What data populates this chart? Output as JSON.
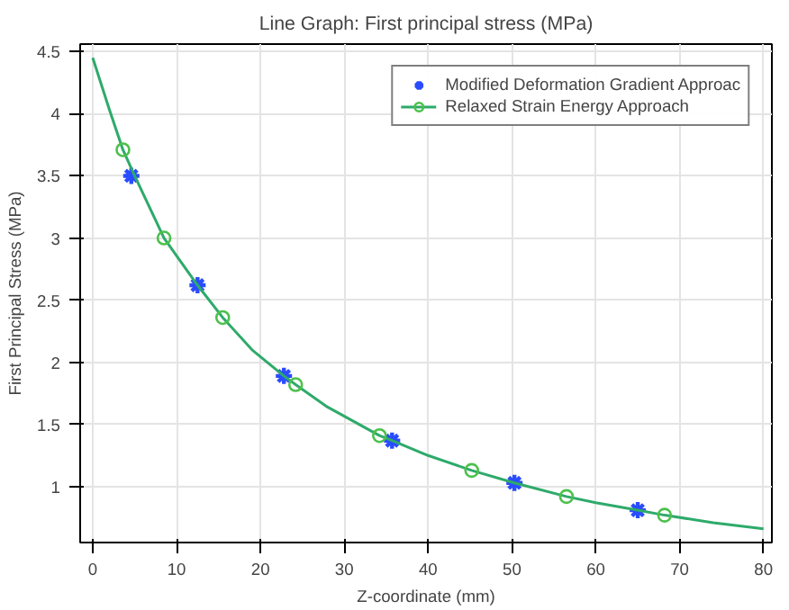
{
  "chart_data": {
    "type": "line",
    "title": "Line Graph: First principal stress (MPa)",
    "xlabel": "Z-coordinate (mm)",
    "ylabel": "First Principal Stress (MPa)",
    "xlim": [
      -1.5,
      81
    ],
    "ylim": [
      0.55,
      4.56
    ],
    "xticks": [
      0,
      10,
      20,
      30,
      40,
      50,
      60,
      70,
      80
    ],
    "yticks": [
      1,
      1.5,
      2,
      2.5,
      3,
      3.5,
      4,
      4.5
    ],
    "grid": true,
    "legend": "top right",
    "series": [
      {
        "name": "Modified Deformation Gradient Approac",
        "color": "#2a4cff",
        "type": "scatter",
        "marker": "cross",
        "x": [
          4.6,
          12.5,
          22.8,
          35.7,
          50.3,
          65
        ],
        "values": [
          3.5,
          2.62,
          1.89,
          1.37,
          1.03,
          0.81
        ]
      },
      {
        "name": "Relaxed Strain Energy Approach",
        "color": "#2eaa6a",
        "marker": "none",
        "x": [
          0,
          2,
          3.6,
          5,
          8.5,
          12.5,
          15.5,
          19,
          22.8,
          24.2,
          28,
          34.2,
          35.7,
          40,
          45.2,
          50.3,
          56.5,
          60,
          65,
          68.2,
          74,
          80
        ],
        "values": [
          4.45,
          4.03,
          3.71,
          3.5,
          3.0,
          2.62,
          2.36,
          2.1,
          1.89,
          1.82,
          1.64,
          1.41,
          1.37,
          1.25,
          1.13,
          1.03,
          0.92,
          0.87,
          0.81,
          0.77,
          0.71,
          0.66
        ]
      },
      {
        "color": "#4cc04c",
        "type": "scatter",
        "marker": "circle",
        "x": [
          3.6,
          8.5,
          15.5,
          24.2,
          34.2,
          45.2,
          56.5,
          68.2
        ],
        "values": [
          3.71,
          3.0,
          2.36,
          1.82,
          1.41,
          1.13,
          0.92,
          0.77
        ]
      }
    ]
  }
}
